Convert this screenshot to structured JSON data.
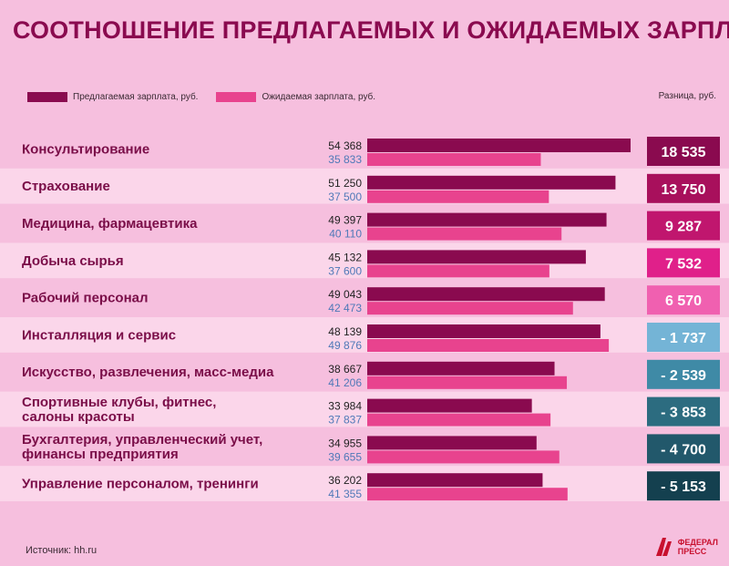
{
  "title": "СООТНОШЕНИЕ ПРЕДЛАГАЕМЫХ И ОЖИДАЕМЫХ ЗАРПЛАТ",
  "legend": {
    "offered": "Предлагаемая зарплата, руб.",
    "expected": "Ожидаемая зарплата, руб.",
    "difference": "Разница, руб."
  },
  "source": "Источник: hh.ru",
  "logo": {
    "line1": "ФЕДЕРАЛ",
    "line2": "ПРЕСС"
  },
  "colors": {
    "background": "#f6bfde",
    "row_alt": "#fbd6ea",
    "offered": "#8a0a4f",
    "expected": "#e8438e",
    "title": "#8a0a4f",
    "offered_text": "#222222",
    "expected_text": "#4f79b8"
  },
  "chart_data": {
    "type": "bar",
    "orientation": "horizontal",
    "categories": [
      [
        "Консультирование"
      ],
      [
        "Страхование"
      ],
      [
        "Медицина, фармацевтика"
      ],
      [
        "Добыча сырья"
      ],
      [
        "Рабочий персонал"
      ],
      [
        "Инсталляция и сервис"
      ],
      [
        "Искусство, развлечения, масс-медиа"
      ],
      [
        "Спортивные клубы, фитнес,",
        "салоны красоты"
      ],
      [
        "Бухгалтерия, управленческий учет,",
        "финансы предприятия"
      ],
      [
        "Управление персоналом, тренинги"
      ]
    ],
    "series": [
      {
        "name": "Предлагаемая зарплата, руб.",
        "values": [
          54368,
          51250,
          49397,
          45132,
          49043,
          48139,
          38667,
          33984,
          34955,
          36202
        ]
      },
      {
        "name": "Ожидаемая зарплата, руб.",
        "values": [
          35833,
          37500,
          40110,
          37600,
          42473,
          49876,
          41206,
          37837,
          39655,
          41355
        ]
      }
    ],
    "offered_labels": [
      "54 368",
      "51 250",
      "49 397",
      "45 132",
      "49 043",
      "48 139",
      "38 667",
      "33 984",
      "34 955",
      "36 202"
    ],
    "expected_labels": [
      "35 833",
      "37 500",
      "40 110",
      "37 600",
      "42 473",
      "49 876",
      "41 206",
      "37 837",
      "39 655",
      "41 355"
    ],
    "differences": [
      18535,
      13750,
      9287,
      7532,
      6570,
      -1737,
      -2539,
      -3853,
      -4700,
      -5153
    ],
    "difference_labels": [
      "18 535",
      "13 750",
      "9 287",
      "7 532",
      "6 570",
      "- 1 737",
      "- 2 539",
      "- 3 853",
      "- 4 700",
      "- 5 153"
    ],
    "difference_colors": [
      "#8a0a4f",
      "#a8105c",
      "#c0166e",
      "#e0208a",
      "#f060b0",
      "#74b4d6",
      "#3f8aa6",
      "#2c6c80",
      "#22586b",
      "#14404f"
    ],
    "difference_text_colors": [
      "#ffffff",
      "#ffffff",
      "#ffffff",
      "#ffffff",
      "#ffffff",
      "#ffffff",
      "#ffffff",
      "#ffffff",
      "#ffffff",
      "#ffffff"
    ],
    "xlim": [
      0,
      54368
    ],
    "legend_position": "top-left"
  }
}
